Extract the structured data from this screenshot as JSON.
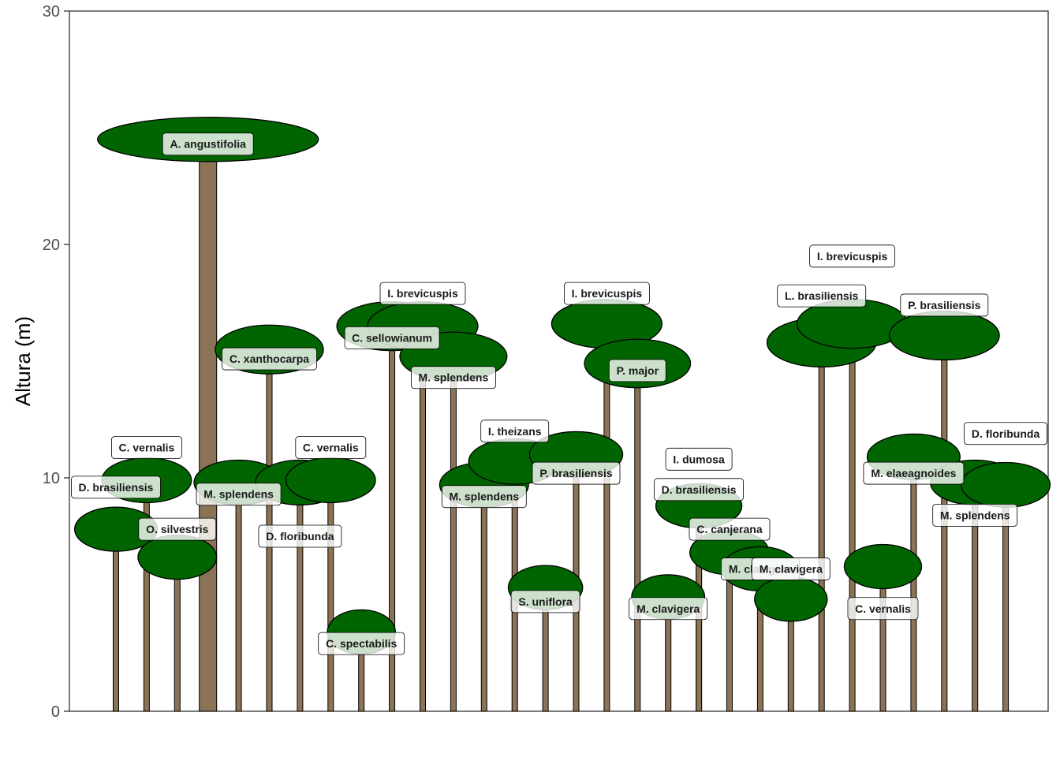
{
  "chart_data": {
    "type": "scatter",
    "title": "",
    "xlabel": "",
    "ylabel": "Altura (m)",
    "ylim": [
      0,
      30
    ],
    "yticks": [
      0,
      10,
      20,
      30
    ],
    "ytick_labels": [
      "0",
      "10",
      "20",
      "30"
    ],
    "grid": false,
    "legend": "none",
    "colors": {
      "crown": "#006400",
      "trunk": "#8b7355",
      "outline": "#000000",
      "label_fill": "#ffffff",
      "axis": "#333333"
    },
    "trees": [
      {
        "species": "D. brasiliensis",
        "x": 1,
        "height": 7.8,
        "label_y": 9.6
      },
      {
        "species": "C. vernalis",
        "x": 2,
        "height": 9.9,
        "label_y": 11.3
      },
      {
        "species": "O. silvestris",
        "x": 3,
        "height": 6.6,
        "label_y": 7.8
      },
      {
        "species": "A. angustifolia",
        "x": 4,
        "height": 24.5,
        "label_y": 24.3
      },
      {
        "species": "M. splendens",
        "x": 5,
        "height": 9.8,
        "label_y": 9.3
      },
      {
        "species": "C. xanthocarpa",
        "x": 6,
        "height": 15.5,
        "label_y": 15.1
      },
      {
        "species": "D. floribunda",
        "x": 7,
        "height": 9.8,
        "label_y": 7.5
      },
      {
        "species": "C. vernalis",
        "x": 8,
        "height": 9.9,
        "label_y": 11.3
      },
      {
        "species": "C. spectabilis",
        "x": 9,
        "height": 3.4,
        "label_y": 2.9
      },
      {
        "species": "C. sellowianum",
        "x": 10,
        "height": 16.5,
        "label_y": 16.0
      },
      {
        "species": "I. brevicuspis",
        "x": 11,
        "height": 16.5,
        "label_y": 17.9
      },
      {
        "species": "M. splendens",
        "x": 12,
        "height": 15.2,
        "label_y": 14.3
      },
      {
        "species": "M. splendens",
        "x": 13,
        "height": 9.7,
        "label_y": 9.2
      },
      {
        "species": "I. theizans",
        "x": 14,
        "height": 10.7,
        "label_y": 12.0
      },
      {
        "species": "S. uniflora",
        "x": 15,
        "height": 5.3,
        "label_y": 4.7
      },
      {
        "species": "P. brasiliensis",
        "x": 16,
        "height": 11.0,
        "label_y": 10.2
      },
      {
        "species": "I. brevicuspis",
        "x": 17,
        "height": 16.6,
        "label_y": 17.9
      },
      {
        "species": "P. major",
        "x": 18,
        "height": 14.9,
        "label_y": 14.6
      },
      {
        "species": "M. clavigera",
        "x": 19,
        "height": 4.9,
        "label_y": 4.4
      },
      {
        "species": "I. dumosa",
        "x": 20,
        "height": 8.8,
        "label_y": 10.8
      },
      {
        "species": "D. brasiliensis",
        "x": 20,
        "height": 8.8,
        "label_y": 9.5
      },
      {
        "species": "C. canjerana",
        "x": 21,
        "height": 6.8,
        "label_y": 7.8
      },
      {
        "species": "M. clavigera",
        "x": 22,
        "height": 6.1,
        "label_y": 6.1
      },
      {
        "species": "M. clavigera",
        "x": 23,
        "height": 4.8,
        "label_y": 6.1
      },
      {
        "species": "L. brasiliensis",
        "x": 24,
        "height": 15.8,
        "label_y": 17.8
      },
      {
        "species": "I. brevicuspis",
        "x": 25,
        "height": 16.6,
        "label_y": 19.5
      },
      {
        "species": "C. vernalis",
        "x": 26,
        "height": 6.2,
        "label_y": 4.4
      },
      {
        "species": "M. elaeagnoides",
        "x": 27,
        "height": 10.9,
        "label_y": 10.2
      },
      {
        "species": "P. brasiliensis",
        "x": 28,
        "height": 16.1,
        "label_y": 17.4
      },
      {
        "species": "M. splendens",
        "x": 29,
        "height": 9.8,
        "label_y": 8.4
      },
      {
        "species": "D. floribunda",
        "x": 30,
        "height": 9.7,
        "label_y": 11.9
      }
    ]
  }
}
